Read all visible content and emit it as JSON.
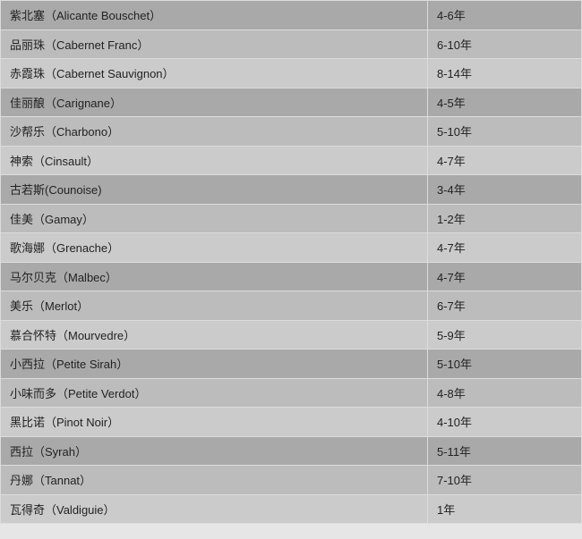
{
  "table": {
    "rows": [
      {
        "variety": "紫北塞（Alicante  Bouschet）",
        "years": "4-6年"
      },
      {
        "variety": "品丽珠（Cabernet Franc）",
        "years": "6-10年"
      },
      {
        "variety": "赤霞珠（Cabernet Sauvignon）",
        "years": "8-14年"
      },
      {
        "variety": "佳丽酿（Carignane）",
        "years": "4-5年"
      },
      {
        "variety": "沙帮乐（Charbono）",
        "years": "5-10年"
      },
      {
        "variety": "神索（Cinsault）",
        "years": "4-7年"
      },
      {
        "variety": "古若斯(Counoise)",
        "years": "3-4年"
      },
      {
        "variety": "佳美（Gamay）",
        "years": "1-2年"
      },
      {
        "variety": "歌海娜（Grenache）",
        "years": "4-7年"
      },
      {
        "variety": "马尔贝克（Malbec）",
        "years": "4-7年"
      },
      {
        "variety": "美乐（Merlot）",
        "years": "6-7年"
      },
      {
        "variety": "慕合怀特（Mourvedre）",
        "years": "5-9年"
      },
      {
        "variety": "小西拉（Petite Sirah）",
        "years": "5-10年"
      },
      {
        "variety": "小味而多（Petite Verdot）",
        "years": "4-8年"
      },
      {
        "variety": "黑比诺（Pinot Noir）",
        "years": "4-10年"
      },
      {
        "variety": "西拉（Syrah）",
        "years": "5-11年"
      },
      {
        "variety": "丹娜（Tannat）",
        "years": "7-10年"
      },
      {
        "variety": "瓦得奇（Valdiguie）",
        "years": "1年"
      }
    ]
  },
  "colors": {
    "shade_dark": "#a9a9a9",
    "shade_mid": "#bcbcbc",
    "shade_light": "#cbcbcb",
    "border": "#dcdcdc"
  }
}
